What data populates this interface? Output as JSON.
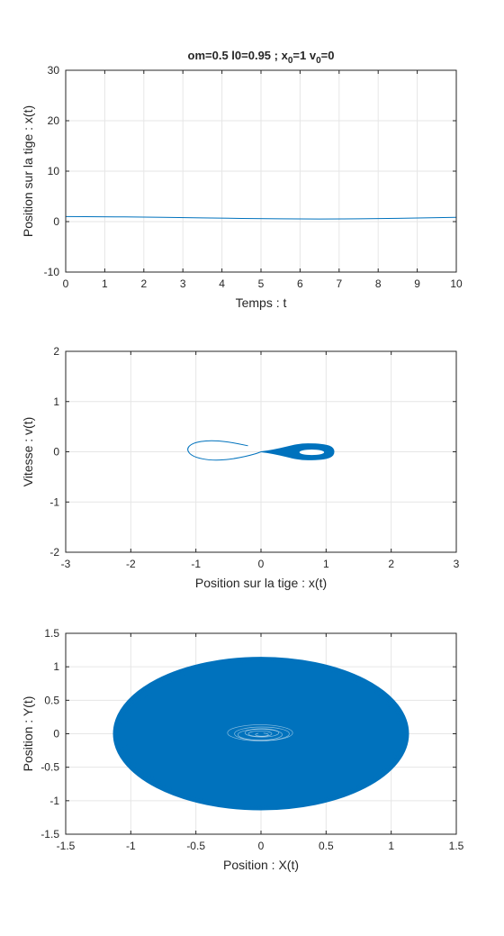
{
  "title": {
    "part1": "om=0.5   l0=0.95  ;  x",
    "sub1": "0",
    "part2": "=1  v",
    "sub2": "0",
    "part3": "=0"
  },
  "colors": {
    "line": "#0072bd",
    "grid": "#e6e6e6",
    "axes": "#262626"
  },
  "chart_data": [
    {
      "type": "line",
      "xlabel": "Temps : t",
      "ylabel": "Position sur la tige : x(t)",
      "xlim": [
        0,
        10
      ],
      "ylim": [
        -10,
        30
      ],
      "xticks": [
        "0",
        "1",
        "2",
        "3",
        "4",
        "5",
        "6",
        "7",
        "8",
        "9",
        "10"
      ],
      "yticks": [
        "-10",
        "0",
        "10",
        "20",
        "30"
      ],
      "grid": true,
      "series": [
        {
          "x": [
            0,
            1,
            2,
            3,
            4,
            5,
            6,
            7,
            8,
            9,
            10
          ],
          "y": [
            1.0,
            0.97,
            0.9,
            0.8,
            0.68,
            0.58,
            0.52,
            0.52,
            0.58,
            0.7,
            0.85
          ]
        }
      ]
    },
    {
      "type": "line",
      "xlabel": "Position sur la tige : x(t)",
      "ylabel": "Vitesse : v(t)",
      "xlim": [
        -3,
        3
      ],
      "ylim": [
        -2,
        2
      ],
      "xticks": [
        "-3",
        "-2",
        "-1",
        "0",
        "1",
        "2",
        "3"
      ],
      "yticks": [
        "-2",
        "-1",
        "0",
        "1",
        "2"
      ],
      "grid": true,
      "series": [
        {
          "x": [
            -0.2,
            -0.5,
            -0.8,
            -1.05,
            -1.15,
            -1.05,
            -0.75,
            -0.4,
            -0.1,
            0.0
          ],
          "y": [
            0.12,
            0.2,
            0.23,
            0.18,
            0.05,
            -0.1,
            -0.18,
            -0.14,
            -0.05,
            0.0
          ]
        }
      ],
      "band": {
        "outer": {
          "cx": 0.72,
          "cy": 0.0,
          "rx": 0.4,
          "ry": 0.16,
          "left_x": 0.0
        },
        "inner": {
          "cx": 0.78,
          "cy": -0.01,
          "rx": 0.19,
          "ry": 0.055
        }
      }
    },
    {
      "type": "line",
      "xlabel": "Position : X(t)",
      "ylabel": "Position : Y(t)",
      "xlim": [
        -1.5,
        1.5
      ],
      "ylim": [
        -1.5,
        1.5
      ],
      "xticks": [
        "-1.5",
        "-1",
        "-0.5",
        "0",
        "0.5",
        "1",
        "1.5"
      ],
      "yticks": [
        "-1.5",
        "-1",
        "-0.5",
        "0",
        "0.5",
        "1",
        "1.5"
      ],
      "grid": true,
      "fill_region": {
        "cx": 0.0,
        "cy": 0.0,
        "rx": 1.13,
        "ry": 1.13
      },
      "inner_loops": {
        "cx": 0.0,
        "cy": 0.0,
        "rx": 0.25,
        "ry": 0.12
      }
    }
  ]
}
